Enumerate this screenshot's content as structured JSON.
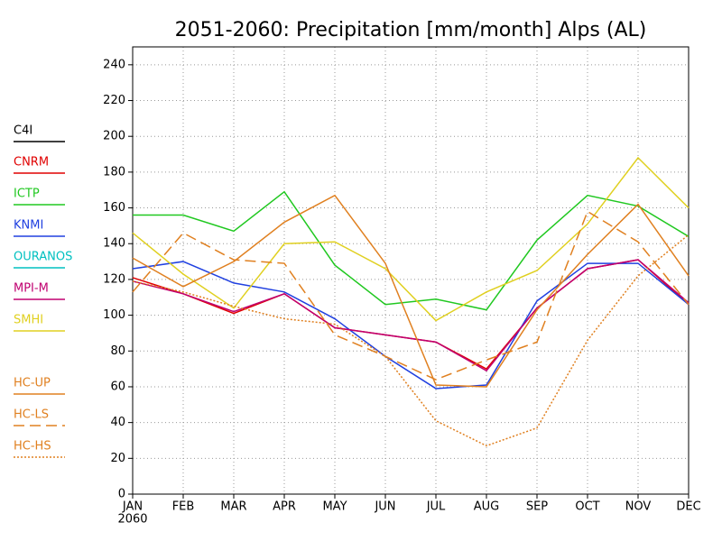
{
  "chart_data": {
    "type": "line",
    "title": "2051-2060: Precipitation [mm/month] Alps (AL)",
    "categories": [
      "JAN",
      "FEB",
      "MAR",
      "APR",
      "MAY",
      "JUN",
      "JUL",
      "AUG",
      "SEP",
      "OCT",
      "NOV",
      "DEC"
    ],
    "x_sublabel": "2060",
    "ylim": [
      0,
      250
    ],
    "yticks": [
      0,
      20,
      40,
      60,
      80,
      100,
      120,
      140,
      160,
      180,
      200,
      220,
      240
    ],
    "grid": true,
    "legend": "left",
    "series": [
      {
        "name": "C4I",
        "color": "#000000",
        "dash": "solid",
        "values": [
          null,
          null,
          null,
          null,
          null,
          null,
          null,
          null,
          null,
          null,
          null,
          null
        ]
      },
      {
        "name": "CNRM",
        "color": "#e00000",
        "dash": "solid",
        "values": [
          121,
          112,
          101,
          112,
          93,
          89,
          85,
          70,
          104,
          126,
          131,
          106
        ]
      },
      {
        "name": "ICTP",
        "color": "#20c820",
        "dash": "solid",
        "values": [
          156,
          156,
          147,
          169,
          128,
          106,
          109,
          103,
          142,
          167,
          161,
          144
        ]
      },
      {
        "name": "KNMI",
        "color": "#2040e0",
        "dash": "solid",
        "values": [
          126,
          130,
          118,
          113,
          98,
          77,
          59,
          61,
          108,
          129,
          129,
          106
        ]
      },
      {
        "name": "OURANOS",
        "color": "#00c0c0",
        "dash": "solid",
        "values": [
          null,
          null,
          null,
          null,
          null,
          null,
          null,
          null,
          null,
          null,
          null,
          null
        ]
      },
      {
        "name": "MPI-M",
        "color": "#c00070",
        "dash": "solid",
        "values": [
          119,
          112,
          102,
          112,
          93,
          89,
          85,
          69,
          104,
          126,
          131,
          107
        ]
      },
      {
        "name": "SMHI",
        "color": "#e0d020",
        "dash": "solid",
        "values": [
          146,
          123,
          104,
          140,
          141,
          126,
          97,
          113,
          125,
          151,
          188,
          160
        ]
      },
      {
        "name": "HC-UP",
        "color": "#e08020",
        "dash": "solid",
        "values": [
          132,
          116,
          130,
          152,
          167,
          129,
          61,
          60,
          103,
          134,
          162,
          122
        ]
      },
      {
        "name": "HC-LS",
        "color": "#e08020",
        "dash": "dashed",
        "values": [
          113,
          146,
          131,
          129,
          89,
          77,
          64,
          75,
          85,
          158,
          141,
          106
        ]
      },
      {
        "name": "HC-HS",
        "color": "#e08020",
        "dash": "dotted",
        "values": [
          119,
          113,
          105,
          98,
          95,
          77,
          41,
          27,
          37,
          86,
          122,
          145
        ]
      }
    ]
  }
}
